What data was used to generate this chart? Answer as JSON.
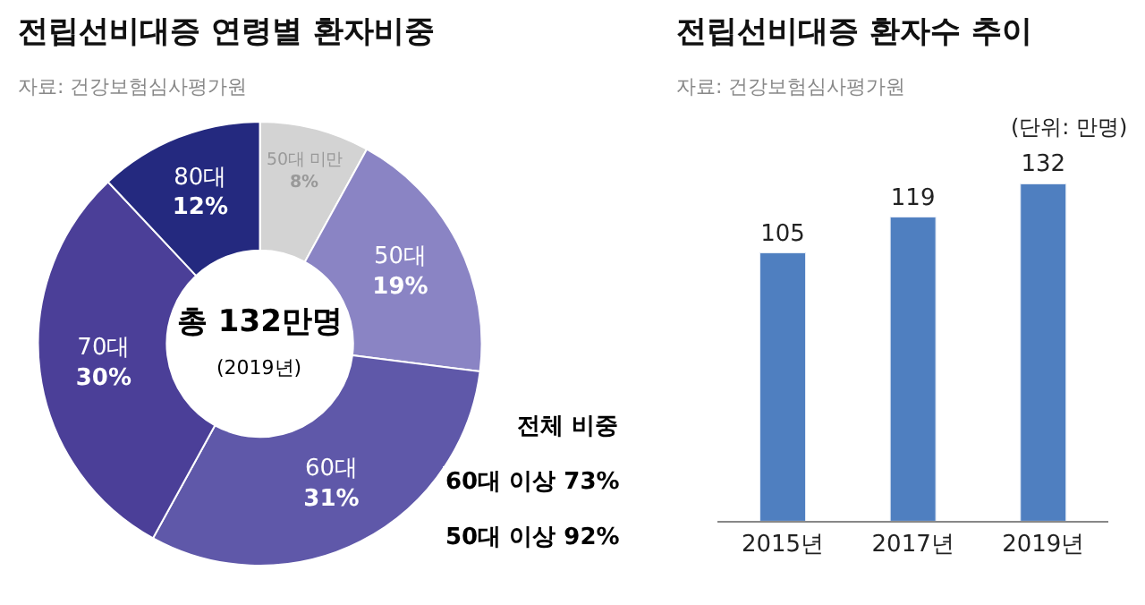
{
  "chart_data": [
    {
      "type": "donut",
      "title": "전립선비대증 연령별 환자비중",
      "subtitle": "자료: 건강보험심사평가원",
      "categories": [
        "50대 미만",
        "50대",
        "60대",
        "70대",
        "80대"
      ],
      "values": [
        8,
        19,
        31,
        30,
        12
      ],
      "value_labels": [
        "8%",
        "19%",
        "31%",
        "30%",
        "12%"
      ],
      "colors": [
        "#d3d3d3",
        "#8a84c4",
        "#5f58a9",
        "#4b3f98",
        "#24297f"
      ],
      "annotations": [
        "총 132만명",
        "(2019년)",
        "전체 비중",
        "60대 이상 73%",
        "50대 이상 92%"
      ]
    },
    {
      "type": "bar",
      "title": "전립선비대증 환자수 추이",
      "subtitle": "자료: 건강보험심사평가원",
      "categories": [
        "2015년",
        "2017년",
        "2019년"
      ],
      "values": [
        105,
        119,
        132
      ],
      "color": "#4f7fc0",
      "data_labels": true,
      "tick_labels": "x",
      "annotations": [
        "(단위: 만명)"
      ]
    }
  ]
}
